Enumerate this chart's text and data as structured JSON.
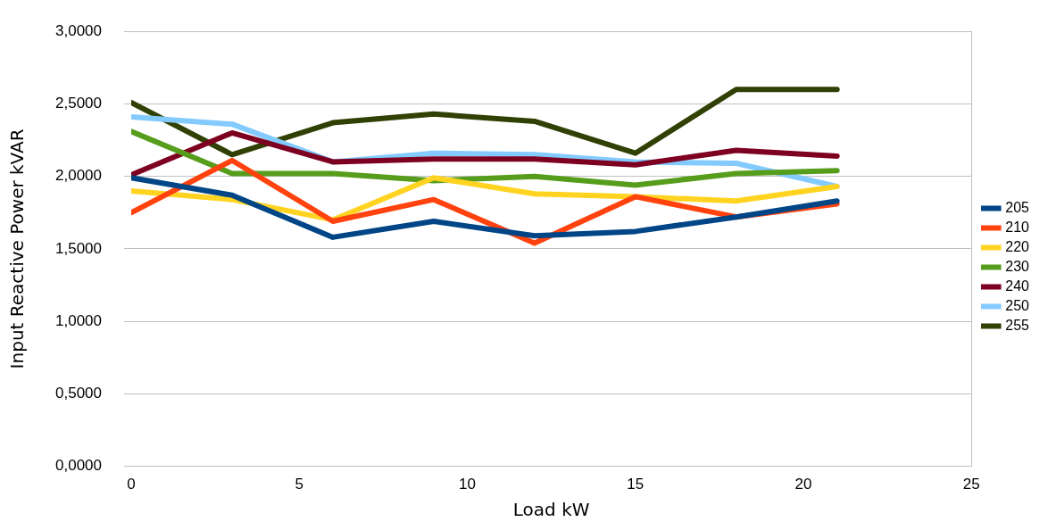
{
  "chart_data": {
    "type": "line",
    "xlabel": "Load kW",
    "ylabel": "Input Reactive Power kVAR",
    "x": [
      0,
      3,
      6,
      9,
      12,
      15,
      18,
      21
    ],
    "series": [
      {
        "name": "205",
        "color": "#004586",
        "values": [
          1.99,
          1.87,
          1.58,
          1.69,
          1.59,
          1.62,
          1.72,
          1.83
        ]
      },
      {
        "name": "210",
        "color": "#ff420e",
        "values": [
          1.75,
          2.11,
          1.69,
          1.84,
          1.54,
          1.86,
          1.72,
          1.81
        ]
      },
      {
        "name": "220",
        "color": "#ffd320",
        "values": [
          1.9,
          1.84,
          1.7,
          1.99,
          1.88,
          1.86,
          1.83,
          1.93
        ]
      },
      {
        "name": "230",
        "color": "#579d1c",
        "values": [
          2.31,
          2.02,
          2.02,
          1.97,
          2.0,
          1.94,
          2.02,
          2.04
        ]
      },
      {
        "name": "240",
        "color": "#7e0021",
        "values": [
          2.01,
          2.3,
          2.1,
          2.12,
          2.12,
          2.08,
          2.18,
          2.14
        ]
      },
      {
        "name": "250",
        "color": "#83caff",
        "values": [
          2.41,
          2.36,
          2.1,
          2.16,
          2.15,
          2.1,
          2.09,
          1.93
        ]
      },
      {
        "name": "255",
        "color": "#314004",
        "values": [
          2.51,
          2.15,
          2.37,
          2.43,
          2.38,
          2.16,
          2.6,
          2.6
        ]
      }
    ],
    "xlim": [
      0,
      25
    ],
    "xticks": [
      0,
      5,
      10,
      15,
      20,
      25
    ],
    "ylim": [
      0,
      3
    ],
    "yticks": [
      {
        "value": 0,
        "label": "0,0000"
      },
      {
        "value": 0.5,
        "label": "0,5000"
      },
      {
        "value": 1,
        "label": "1,0000"
      },
      {
        "value": 1.5,
        "label": "1,5000"
      },
      {
        "value": 2,
        "label": "2,0000"
      },
      {
        "value": 2.5,
        "label": "2,5000"
      },
      {
        "value": 3,
        "label": "3,0000"
      }
    ],
    "grid": "y",
    "legend": "right",
    "marker": "none",
    "line_style": "solid"
  }
}
